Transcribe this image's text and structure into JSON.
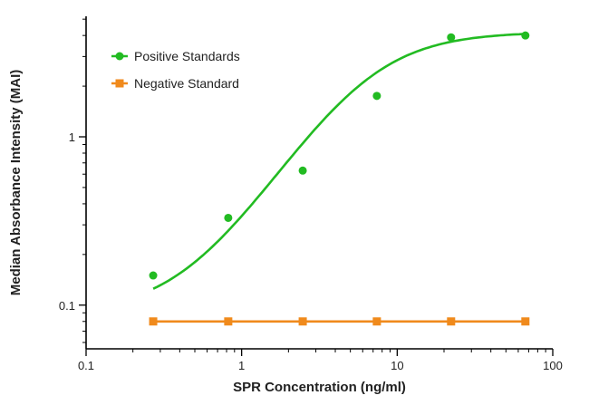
{
  "chart_data": {
    "type": "line",
    "xlabel": "SPR Concentration (ng/ml)",
    "ylabel": "Median Absorbance Intensity (MAI)",
    "x_scale": "log",
    "y_scale": "log",
    "xlim": [
      0.1,
      100
    ],
    "ylim": [
      0.055,
      5.2
    ],
    "x_ticks": [
      {
        "value": 0.1,
        "label": "0.1"
      },
      {
        "value": 1,
        "label": "1"
      },
      {
        "value": 10,
        "label": "10"
      },
      {
        "value": 100,
        "label": "100"
      }
    ],
    "y_ticks": [
      {
        "value": 0.1,
        "label": "0.1"
      },
      {
        "value": 1,
        "label": "1"
      }
    ],
    "grid": false,
    "legend": {
      "placement": "top-left"
    },
    "series": [
      {
        "name": "Positive Standards",
        "color": "#22bb22",
        "marker": "circle",
        "x": [
          0.27,
          0.82,
          2.47,
          7.4,
          22.2,
          66.7
        ],
        "y": [
          0.15,
          0.33,
          0.63,
          1.75,
          3.9,
          4.0
        ],
        "fit": {
          "model": "4PL",
          "bottom": 0.088,
          "top": 4.2,
          "ec50": 6.2,
          "hill": 1.5,
          "x_range": [
            0.27,
            66.7
          ]
        }
      },
      {
        "name": "Negative Standard",
        "color": "#f08a1c",
        "marker": "square",
        "x": [
          0.27,
          0.82,
          2.47,
          7.4,
          22.2,
          66.7
        ],
        "y": [
          0.08,
          0.08,
          0.08,
          0.08,
          0.08,
          0.08
        ]
      }
    ]
  }
}
